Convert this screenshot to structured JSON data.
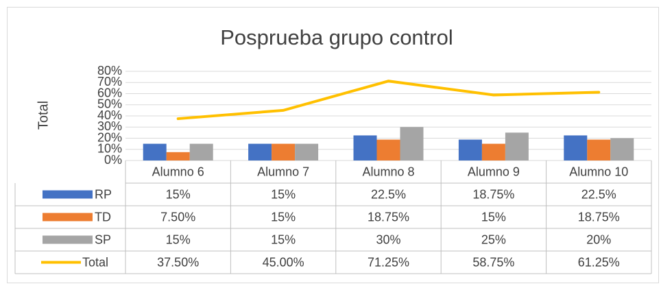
{
  "chart_data": {
    "type": "bar",
    "title": "Posprueba grupo control",
    "y_label": "Total",
    "categories": [
      "Alumno 6",
      "Alumno 7",
      "Alumno 8",
      "Alumno 9",
      "Alumno 10"
    ],
    "series": [
      {
        "name": "RP",
        "type": "bar",
        "color": "#4472c4",
        "values": [
          15,
          15,
          22.5,
          18.75,
          22.5
        ],
        "value_labels": [
          "15%",
          "15%",
          "22.5%",
          "18.75%",
          "22.5%"
        ]
      },
      {
        "name": "TD",
        "type": "bar",
        "color": "#ed7d31",
        "values": [
          7.5,
          15,
          18.75,
          15,
          18.75
        ],
        "value_labels": [
          "7.50%",
          "15%",
          "18.75%",
          "15%",
          "18.75%"
        ]
      },
      {
        "name": "SP",
        "type": "bar",
        "color": "#a5a5a5",
        "values": [
          15,
          15,
          30,
          25,
          20
        ],
        "value_labels": [
          "15%",
          "15%",
          "30%",
          "25%",
          "20%"
        ]
      },
      {
        "name": "Total",
        "type": "line",
        "color": "#ffc000",
        "values": [
          37.5,
          45,
          71.25,
          58.75,
          61.25
        ],
        "value_labels": [
          "37.50%",
          "45.00%",
          "71.25%",
          "58.75%",
          "61.25%"
        ]
      }
    ],
    "ylim": [
      0,
      80
    ],
    "yticks": [
      {
        "value": 0,
        "label": "0%"
      },
      {
        "value": 10,
        "label": "10%"
      },
      {
        "value": 20,
        "label": "20%"
      },
      {
        "value": 30,
        "label": "30%"
      },
      {
        "value": 40,
        "label": "40%"
      },
      {
        "value": 50,
        "label": "50%"
      },
      {
        "value": 60,
        "label": "60%"
      },
      {
        "value": 70,
        "label": "70%"
      },
      {
        "value": 80,
        "label": "80%"
      }
    ],
    "grid": true
  }
}
